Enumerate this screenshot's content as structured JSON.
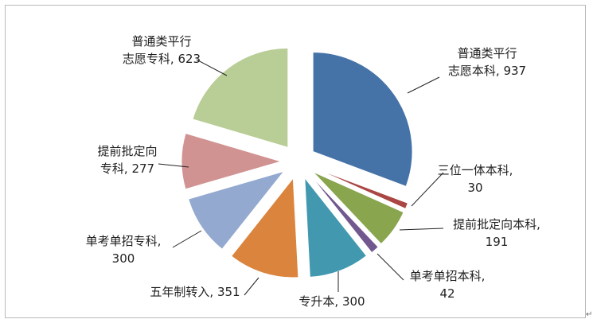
{
  "chart_data": {
    "type": "pie",
    "title": "",
    "slices": [
      {
        "label_lines": [
          "普通类平行",
          "志愿本科, 937"
        ],
        "name": "普通类平行志愿本科",
        "value": 937,
        "color": "#4572a7"
      },
      {
        "label_lines": [
          "三位一体本科,",
          "30"
        ],
        "name": "三位一体本科",
        "value": 30,
        "color": "#aa4643"
      },
      {
        "label_lines": [
          "提前批定向本科,",
          "191"
        ],
        "name": "提前批定向本科",
        "value": 191,
        "color": "#89a54e"
      },
      {
        "label_lines": [
          "单考单招本科,",
          "42"
        ],
        "name": "单考单招本科",
        "value": 42,
        "color": "#71588f"
      },
      {
        "label_lines": [
          "专升本, 300"
        ],
        "name": "专升本",
        "value": 300,
        "color": "#4198af"
      },
      {
        "label_lines": [
          "五年制转入, 351"
        ],
        "name": "五年制转入",
        "value": 351,
        "color": "#db843d"
      },
      {
        "label_lines": [
          "单考单招专科,",
          "300"
        ],
        "name": "单考单招专科",
        "value": 300,
        "color": "#93a9cf"
      },
      {
        "label_lines": [
          "提前批定向",
          "专科, 277"
        ],
        "name": "提前批定向专科",
        "value": 277,
        "color": "#d19392"
      },
      {
        "label_lines": [
          "普通类平行",
          "志愿专科, 623"
        ],
        "name": "普通类平行志愿专科",
        "value": 623,
        "color": "#b9cd96"
      }
    ]
  },
  "page": {
    "return_mark": "↵"
  }
}
